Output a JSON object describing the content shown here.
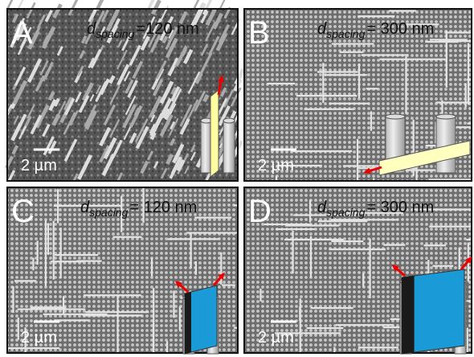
{
  "panels": [
    {
      "letter": "A",
      "symbol": "d",
      "subscript": "spacing",
      "value": "=120 nm",
      "scale": "2 µm"
    },
    {
      "letter": "B",
      "symbol": "d",
      "subscript": "spacing",
      "value": "= 300 nm",
      "scale": "2 µm"
    },
    {
      "letter": "C",
      "symbol": "d",
      "subscript": "spacing",
      "value": "= 120 nm",
      "scale": "2 µm"
    },
    {
      "letter": "D",
      "symbol": "d",
      "subscript": "spacing",
      "value": "= 300 nm",
      "scale": "2 µm"
    }
  ]
}
